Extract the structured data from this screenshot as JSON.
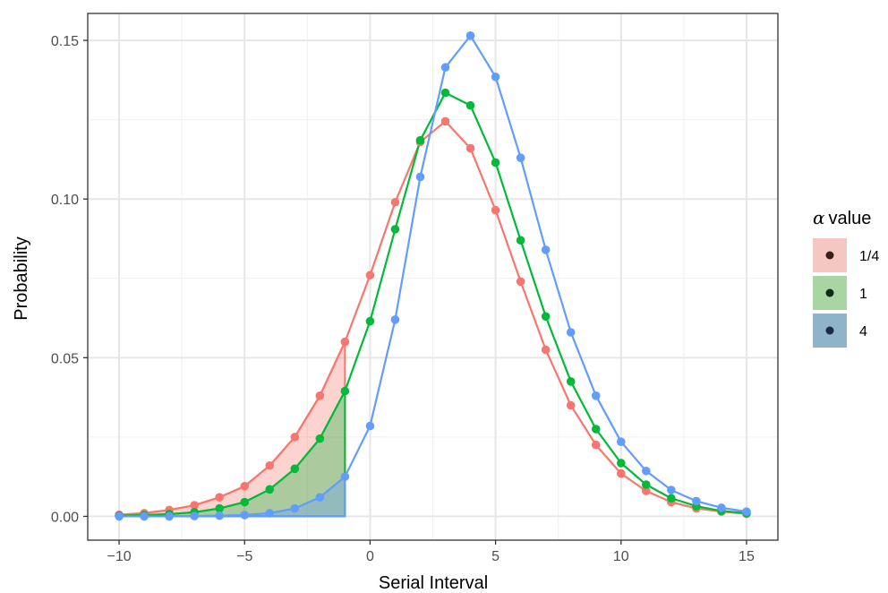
{
  "chart_data": {
    "type": "line",
    "title": "",
    "xlabel": "Serial Interval",
    "ylabel": "Probability",
    "xlim": [
      -11.25,
      16.25
    ],
    "ylim": [
      -0.0075,
      0.1585
    ],
    "x_ticks": [
      -10,
      -5,
      0,
      5,
      10,
      15
    ],
    "x_tick_labels": [
      "−10",
      "−5",
      "0",
      "5",
      "10",
      "15"
    ],
    "y_ticks": [
      0.0,
      0.05,
      0.1,
      0.15
    ],
    "y_tick_labels": [
      "0.00",
      "0.05",
      "0.10",
      "0.15"
    ],
    "grid": true,
    "legend_title_prefix": "α",
    "legend_title": "value",
    "legend_position": "right",
    "shaded_region": {
      "x_from": -10,
      "x_to": -1
    },
    "x": [
      -10,
      -9,
      -8,
      -7,
      -6,
      -5,
      -4,
      -3,
      -2,
      -1,
      0,
      1,
      2,
      3,
      4,
      5,
      6,
      7,
      8,
      9,
      10,
      11,
      12,
      13,
      14,
      15
    ],
    "series": [
      {
        "name": "1/4",
        "color": "#F8766D",
        "fill": "#F4C7C3",
        "values": [
          0.0005,
          0.001,
          0.002,
          0.0035,
          0.006,
          0.0095,
          0.016,
          0.025,
          0.038,
          0.055,
          0.076,
          0.099,
          0.118,
          0.1245,
          0.116,
          0.0965,
          0.074,
          0.0525,
          0.035,
          0.0225,
          0.0135,
          0.008,
          0.0045,
          0.0025,
          0.0015,
          0.0008
        ]
      },
      {
        "name": "1",
        "color": "#00BA38",
        "fill": "#A8D5A2",
        "values": [
          0.0002,
          0.0004,
          0.0007,
          0.0013,
          0.0025,
          0.0045,
          0.0085,
          0.015,
          0.0245,
          0.0395,
          0.0615,
          0.0905,
          0.1185,
          0.1335,
          0.1295,
          0.1115,
          0.087,
          0.063,
          0.0425,
          0.0275,
          0.0168,
          0.01,
          0.0057,
          0.0032,
          0.0017,
          0.001
        ]
      },
      {
        "name": "4",
        "color": "#619CFF",
        "fill": "#8FB3C8",
        "values": [
          0.0,
          0.0,
          0.0,
          0.0001,
          0.0002,
          0.0004,
          0.001,
          0.0025,
          0.006,
          0.0125,
          0.0285,
          0.062,
          0.107,
          0.1415,
          0.1515,
          0.1385,
          0.113,
          0.084,
          0.058,
          0.038,
          0.0235,
          0.0143,
          0.0083,
          0.0048,
          0.0027,
          0.0015
        ]
      }
    ]
  }
}
